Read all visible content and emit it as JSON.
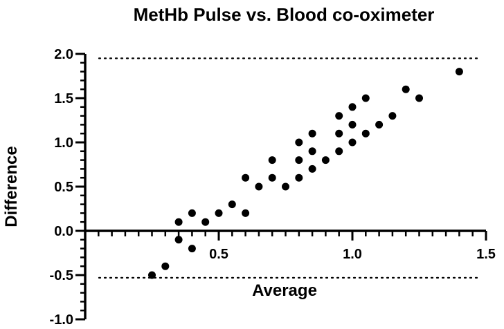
{
  "chart_data": {
    "type": "scatter",
    "title": "MetHb Pulse vs. Blood co-oximeter",
    "xlabel": "Average",
    "ylabel": "Difference",
    "xlim": [
      0.0,
      1.5
    ],
    "ylim": [
      -1.0,
      2.0
    ],
    "x_ticks": [
      {
        "value": 0.5,
        "label": "0.5"
      },
      {
        "value": 1.0,
        "label": "1.0"
      },
      {
        "value": 1.5,
        "label": "1.5"
      }
    ],
    "y_ticks": [
      {
        "value": 2.0,
        "label": "2.0"
      },
      {
        "value": 1.5,
        "label": "1.5"
      },
      {
        "value": 1.0,
        "label": "1.0"
      },
      {
        "value": 0.5,
        "label": "0.5"
      },
      {
        "value": 0.0,
        "label": "0.0"
      },
      {
        "value": -0.5,
        "label": "-0.5"
      },
      {
        "value": -1.0,
        "label": "-1.0"
      }
    ],
    "reference_lines": [
      {
        "axis": "y",
        "value": 1.95,
        "style": "dotted"
      },
      {
        "axis": "y",
        "value": -0.53,
        "style": "dotted"
      }
    ],
    "grid": false,
    "legend": "none",
    "marker_color": "#000000",
    "series": [
      {
        "points": [
          {
            "x": 0.25,
            "y": -0.5
          },
          {
            "x": 0.3,
            "y": -0.4
          },
          {
            "x": 0.35,
            "y": -0.1
          },
          {
            "x": 0.35,
            "y": 0.1
          },
          {
            "x": 0.4,
            "y": -0.2
          },
          {
            "x": 0.4,
            "y": 0.2
          },
          {
            "x": 0.45,
            "y": 0.1
          },
          {
            "x": 0.5,
            "y": 0.2
          },
          {
            "x": 0.55,
            "y": 0.3
          },
          {
            "x": 0.6,
            "y": 0.2
          },
          {
            "x": 0.6,
            "y": 0.6
          },
          {
            "x": 0.65,
            "y": 0.5
          },
          {
            "x": 0.7,
            "y": 0.6
          },
          {
            "x": 0.7,
            "y": 0.8
          },
          {
            "x": 0.75,
            "y": 0.5
          },
          {
            "x": 0.8,
            "y": 0.6
          },
          {
            "x": 0.8,
            "y": 0.8
          },
          {
            "x": 0.8,
            "y": 1.0
          },
          {
            "x": 0.85,
            "y": 0.7
          },
          {
            "x": 0.85,
            "y": 0.9
          },
          {
            "x": 0.85,
            "y": 1.1
          },
          {
            "x": 0.9,
            "y": 0.8
          },
          {
            "x": 0.95,
            "y": 0.9
          },
          {
            "x": 0.95,
            "y": 1.1
          },
          {
            "x": 0.95,
            "y": 1.3
          },
          {
            "x": 1.0,
            "y": 1.0
          },
          {
            "x": 1.0,
            "y": 1.2
          },
          {
            "x": 1.0,
            "y": 1.4
          },
          {
            "x": 1.05,
            "y": 1.1
          },
          {
            "x": 1.05,
            "y": 1.5
          },
          {
            "x": 1.1,
            "y": 1.2
          },
          {
            "x": 1.15,
            "y": 1.3
          },
          {
            "x": 1.2,
            "y": 1.6
          },
          {
            "x": 1.25,
            "y": 1.5
          },
          {
            "x": 1.4,
            "y": 1.8
          }
        ]
      }
    ]
  }
}
